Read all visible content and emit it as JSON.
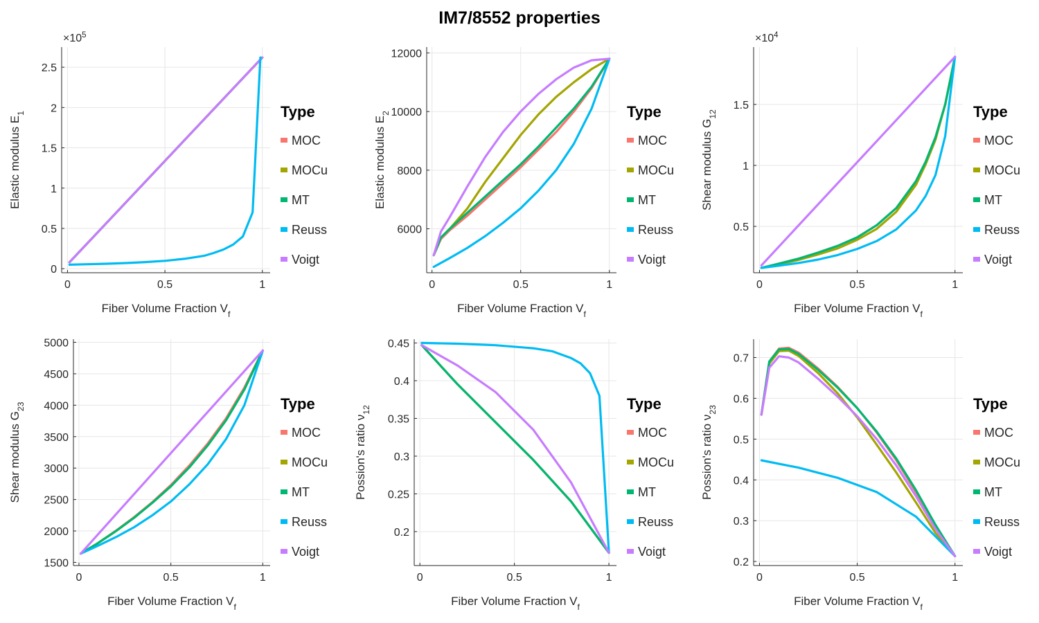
{
  "title": "IM7/8552 properties",
  "colors": {
    "MOC": "#F8766D",
    "MOCu": "#A3A500",
    "MT": "#00B772",
    "Reuss": "#00BBF2",
    "Voigt": "#C77CFF"
  },
  "chart_data": [
    {
      "type": "line",
      "xlabel": "Fiber Volume Fraction V_f",
      "ylabel": "Elastic modulus E_1",
      "exponent": "×10^5",
      "xlim": [
        -0.03,
        1.04
      ],
      "ylim": [
        -5000,
        275000
      ],
      "xticks": [
        0,
        0.5,
        1
      ],
      "xticklabels": [
        "0",
        "0.5",
        "1"
      ],
      "yticks": [
        0,
        50000,
        100000,
        150000,
        200000,
        250000
      ],
      "yticklabels": [
        "0",
        "0.5",
        "1",
        "1.5",
        "2",
        "2.5"
      ],
      "legend": {
        "title": "Type",
        "position": "right",
        "entries": [
          "MOC",
          "MOCu",
          "MT",
          "Reuss",
          "Voigt"
        ]
      },
      "grid": true,
      "series": [
        {
          "name": "MOC",
          "x": [
            0.01,
            1.0
          ],
          "y": [
            8000,
            262000
          ]
        },
        {
          "name": "MOCu",
          "x": [
            0.01,
            1.0
          ],
          "y": [
            8000,
            262000
          ]
        },
        {
          "name": "MT",
          "x": [
            0.01,
            1.0
          ],
          "y": [
            8000,
            262000
          ]
        },
        {
          "name": "Voigt",
          "x": [
            0.01,
            1.0
          ],
          "y": [
            8000,
            262000
          ]
        },
        {
          "name": "Reuss",
          "x": [
            0.01,
            0.1,
            0.2,
            0.3,
            0.4,
            0.5,
            0.6,
            0.7,
            0.75,
            0.8,
            0.85,
            0.9,
            0.95,
            0.99
          ],
          "y": [
            5000,
            5600,
            6200,
            7000,
            8200,
            9800,
            12300,
            16000,
            19500,
            23800,
            30000,
            40000,
            70000,
            262000
          ]
        }
      ]
    },
    {
      "type": "line",
      "xlabel": "Fiber Volume Fraction V_f",
      "ylabel": "Elastic modulus E_2",
      "exponent": "",
      "xlim": [
        -0.03,
        1.04
      ],
      "ylim": [
        4500,
        12200
      ],
      "xticks": [
        0,
        0.5,
        1
      ],
      "xticklabels": [
        "0",
        "0.5",
        "1"
      ],
      "yticks": [
        6000,
        8000,
        10000,
        12000
      ],
      "yticklabels": [
        "6000",
        "8000",
        "10000",
        "12000"
      ],
      "legend": {
        "title": "Type",
        "position": "right",
        "entries": [
          "MOC",
          "MOCu",
          "MT",
          "Reuss",
          "Voigt"
        ]
      },
      "grid": true,
      "series": [
        {
          "name": "MOC",
          "x": [
            0.01,
            0.05,
            0.1,
            0.2,
            0.3,
            0.4,
            0.5,
            0.6,
            0.7,
            0.8,
            0.9,
            1.0
          ],
          "y": [
            5100,
            5650,
            5950,
            6450,
            7000,
            7550,
            8100,
            8700,
            9300,
            10000,
            10800,
            11800
          ]
        },
        {
          "name": "MOCu",
          "x": [
            0.01,
            0.05,
            0.1,
            0.2,
            0.3,
            0.4,
            0.5,
            0.6,
            0.7,
            0.8,
            0.9,
            1.0
          ],
          "y": [
            5100,
            5700,
            6000,
            6700,
            7600,
            8400,
            9200,
            9900,
            10500,
            11000,
            11450,
            11800
          ]
        },
        {
          "name": "MT",
          "x": [
            0.01,
            0.05,
            0.1,
            0.2,
            0.3,
            0.4,
            0.5,
            0.6,
            0.7,
            0.8,
            0.9,
            1.0
          ],
          "y": [
            5100,
            5700,
            6000,
            6550,
            7100,
            7650,
            8200,
            8800,
            9450,
            10100,
            10850,
            11800
          ]
        },
        {
          "name": "Reuss",
          "x": [
            0.01,
            0.1,
            0.2,
            0.3,
            0.4,
            0.5,
            0.6,
            0.7,
            0.8,
            0.9,
            1.0
          ],
          "y": [
            4700,
            5000,
            5350,
            5750,
            6200,
            6700,
            7300,
            8000,
            8900,
            10100,
            11800
          ]
        },
        {
          "name": "Voigt",
          "x": [
            0.01,
            0.05,
            0.1,
            0.2,
            0.3,
            0.4,
            0.5,
            0.6,
            0.7,
            0.8,
            0.9,
            1.0
          ],
          "y": [
            5100,
            5900,
            6400,
            7450,
            8450,
            9300,
            10000,
            10600,
            11100,
            11500,
            11750,
            11800
          ]
        }
      ]
    },
    {
      "type": "line",
      "xlabel": "Fiber Volume Fraction V_f",
      "ylabel": "Shear modulus G_12",
      "exponent": "×10^4",
      "xlim": [
        -0.03,
        1.04
      ],
      "ylim": [
        1200,
        19700
      ],
      "xticks": [
        0,
        0.5,
        1
      ],
      "xticklabels": [
        "0",
        "0.5",
        "1"
      ],
      "yticks": [
        5000,
        10000,
        15000
      ],
      "yticklabels": [
        "0.5",
        "1",
        "1.5"
      ],
      "legend": {
        "title": "Type",
        "position": "right",
        "entries": [
          "MOC",
          "MOCu",
          "MT",
          "Reuss",
          "Voigt"
        ]
      },
      "grid": true,
      "series": [
        {
          "name": "MOC",
          "x": [
            0.01,
            0.1,
            0.2,
            0.3,
            0.4,
            0.5,
            0.6,
            0.7,
            0.8,
            0.85,
            0.9,
            0.95,
            1.0
          ],
          "y": [
            1600,
            1950,
            2350,
            2850,
            3400,
            4100,
            5100,
            6500,
            8700,
            10300,
            12300,
            15000,
            18900
          ]
        },
        {
          "name": "MOCu",
          "x": [
            0.01,
            0.1,
            0.2,
            0.3,
            0.4,
            0.5,
            0.6,
            0.7,
            0.8,
            0.85,
            0.9,
            0.95,
            1.0
          ],
          "y": [
            1600,
            1900,
            2250,
            2700,
            3200,
            3900,
            4800,
            6200,
            8400,
            10100,
            12100,
            15000,
            18900
          ]
        },
        {
          "name": "MT",
          "x": [
            0.01,
            0.1,
            0.2,
            0.3,
            0.4,
            0.5,
            0.6,
            0.7,
            0.8,
            0.85,
            0.9,
            0.95,
            1.0
          ],
          "y": [
            1600,
            1950,
            2350,
            2850,
            3400,
            4100,
            5100,
            6500,
            8700,
            10300,
            12300,
            15000,
            18900
          ]
        },
        {
          "name": "Reuss",
          "x": [
            0.01,
            0.1,
            0.2,
            0.3,
            0.4,
            0.5,
            0.6,
            0.7,
            0.8,
            0.85,
            0.9,
            0.95,
            1.0
          ],
          "y": [
            1600,
            1780,
            2000,
            2280,
            2650,
            3150,
            3800,
            4750,
            6300,
            7500,
            9200,
            12400,
            18900
          ]
        },
        {
          "name": "Voigt",
          "x": [
            0.01,
            1.0
          ],
          "y": [
            1800,
            18900
          ]
        }
      ]
    },
    {
      "type": "line",
      "xlabel": "Fiber Volume Fraction V_f",
      "ylabel": "Shear modulus G_23",
      "exponent": "",
      "xlim": [
        -0.03,
        1.04
      ],
      "ylim": [
        1450,
        5050
      ],
      "xticks": [
        0,
        0.5,
        1
      ],
      "xticklabels": [
        "0",
        "0.5",
        "1"
      ],
      "yticks": [
        1500,
        2000,
        2500,
        3000,
        3500,
        4000,
        4500,
        5000
      ],
      "yticklabels": [
        "1500",
        "2000",
        "2500",
        "3000",
        "3500",
        "4000",
        "4500",
        "5000"
      ],
      "legend": {
        "title": "Type",
        "position": "right",
        "entries": [
          "MOC",
          "MOCu",
          "MT",
          "Reuss",
          "Voigt"
        ]
      },
      "grid": true,
      "series": [
        {
          "name": "MOC",
          "x": [
            0.01,
            0.1,
            0.2,
            0.3,
            0.4,
            0.5,
            0.6,
            0.7,
            0.8,
            0.9,
            1.0
          ],
          "y": [
            1640,
            1800,
            2000,
            2220,
            2460,
            2730,
            3040,
            3390,
            3790,
            4280,
            4870
          ]
        },
        {
          "name": "MOCu",
          "x": [
            0.01,
            0.1,
            0.2,
            0.3,
            0.4,
            0.5,
            0.6,
            0.7,
            0.8,
            0.9,
            1.0
          ],
          "y": [
            1640,
            1800,
            1995,
            2210,
            2450,
            2710,
            3010,
            3360,
            3760,
            4250,
            4870
          ]
        },
        {
          "name": "MT",
          "x": [
            0.01,
            0.1,
            0.2,
            0.3,
            0.4,
            0.5,
            0.6,
            0.7,
            0.8,
            0.9,
            1.0
          ],
          "y": [
            1640,
            1800,
            1995,
            2210,
            2450,
            2710,
            3010,
            3360,
            3760,
            4250,
            4870
          ]
        },
        {
          "name": "Reuss",
          "x": [
            0.01,
            0.1,
            0.2,
            0.3,
            0.4,
            0.5,
            0.6,
            0.7,
            0.8,
            0.9,
            1.0
          ],
          "y": [
            1640,
            1760,
            1900,
            2060,
            2250,
            2470,
            2740,
            3060,
            3460,
            4000,
            4870
          ]
        },
        {
          "name": "Voigt",
          "x": [
            0.01,
            1.0
          ],
          "y": [
            1640,
            4870
          ]
        }
      ]
    },
    {
      "type": "line",
      "xlabel": "Fiber Volume Fraction V_f",
      "ylabel": "Possion's ratio ν_12",
      "exponent": "",
      "xlim": [
        -0.03,
        1.04
      ],
      "ylim": [
        0.155,
        0.455
      ],
      "xticks": [
        0,
        0.5,
        1
      ],
      "xticklabels": [
        "0",
        "0.5",
        "1"
      ],
      "yticks": [
        0.2,
        0.25,
        0.3,
        0.35,
        0.4,
        0.45
      ],
      "yticklabels": [
        "0.2",
        "0.25",
        "0.3",
        "0.35",
        "0.4",
        "0.45"
      ],
      "legend": {
        "title": "Type",
        "position": "right",
        "entries": [
          "MOC",
          "MOCu",
          "MT",
          "Reuss",
          "Voigt"
        ]
      },
      "grid": true,
      "series": [
        {
          "name": "MOC",
          "x": [
            0.01,
            0.2,
            0.4,
            0.6,
            0.8,
            1.0
          ],
          "y": [
            0.447,
            0.395,
            0.345,
            0.295,
            0.24,
            0.172
          ]
        },
        {
          "name": "MOCu",
          "x": [
            0.01,
            0.2,
            0.4,
            0.6,
            0.8,
            1.0
          ],
          "y": [
            0.447,
            0.395,
            0.345,
            0.295,
            0.24,
            0.172
          ]
        },
        {
          "name": "MT",
          "x": [
            0.01,
            0.2,
            0.4,
            0.6,
            0.8,
            1.0
          ],
          "y": [
            0.447,
            0.395,
            0.345,
            0.295,
            0.24,
            0.172
          ]
        },
        {
          "name": "Reuss",
          "x": [
            0.01,
            0.2,
            0.4,
            0.6,
            0.7,
            0.8,
            0.85,
            0.9,
            0.95,
            1.0
          ],
          "y": [
            0.45,
            0.449,
            0.447,
            0.443,
            0.439,
            0.43,
            0.423,
            0.41,
            0.38,
            0.172
          ]
        },
        {
          "name": "Voigt",
          "x": [
            0.01,
            0.2,
            0.4,
            0.6,
            0.8,
            1.0
          ],
          "y": [
            0.447,
            0.42,
            0.385,
            0.335,
            0.265,
            0.172
          ]
        }
      ]
    },
    {
      "type": "line",
      "xlabel": "Fiber Volume Fraction V_f",
      "ylabel": "Possion's ratio ν_23",
      "exponent": "",
      "xlim": [
        -0.03,
        1.04
      ],
      "ylim": [
        0.19,
        0.745
      ],
      "xticks": [
        0,
        0.5,
        1
      ],
      "xticklabels": [
        "0",
        "0.5",
        "1"
      ],
      "yticks": [
        0.2,
        0.3,
        0.4,
        0.5,
        0.6,
        0.7
      ],
      "yticklabels": [
        "0.2",
        "0.3",
        "0.4",
        "0.5",
        "0.6",
        "0.7"
      ],
      "legend": {
        "title": "Type",
        "position": "right",
        "entries": [
          "MOC",
          "MOCu",
          "MT",
          "Reuss",
          "Voigt"
        ]
      },
      "grid": true,
      "series": [
        {
          "name": "MOC",
          "x": [
            0.01,
            0.05,
            0.1,
            0.15,
            0.2,
            0.3,
            0.4,
            0.5,
            0.6,
            0.7,
            0.8,
            0.9,
            1.0
          ],
          "y": [
            0.56,
            0.69,
            0.722,
            0.724,
            0.712,
            0.673,
            0.628,
            0.576,
            0.516,
            0.448,
            0.37,
            0.285,
            0.213
          ]
        },
        {
          "name": "MOCu",
          "x": [
            0.01,
            0.05,
            0.1,
            0.15,
            0.2,
            0.3,
            0.4,
            0.5,
            0.6,
            0.7,
            0.8,
            0.9,
            1.0
          ],
          "y": [
            0.56,
            0.685,
            0.716,
            0.717,
            0.704,
            0.662,
            0.612,
            0.553,
            0.486,
            0.418,
            0.345,
            0.27,
            0.213
          ]
        },
        {
          "name": "MT",
          "x": [
            0.01,
            0.05,
            0.1,
            0.15,
            0.2,
            0.3,
            0.4,
            0.5,
            0.6,
            0.7,
            0.8,
            0.9,
            1.0
          ],
          "y": [
            0.56,
            0.69,
            0.72,
            0.721,
            0.709,
            0.67,
            0.626,
            0.576,
            0.518,
            0.452,
            0.375,
            0.29,
            0.213
          ]
        },
        {
          "name": "Reuss",
          "x": [
            0.01,
            0.2,
            0.4,
            0.6,
            0.8,
            1.0
          ],
          "y": [
            0.448,
            0.43,
            0.405,
            0.37,
            0.31,
            0.213
          ]
        },
        {
          "name": "Voigt",
          "x": [
            0.01,
            0.05,
            0.1,
            0.15,
            0.2,
            0.3,
            0.4,
            0.5,
            0.6,
            0.7,
            0.8,
            0.9,
            1.0
          ],
          "y": [
            0.56,
            0.675,
            0.703,
            0.7,
            0.688,
            0.648,
            0.604,
            0.556,
            0.5,
            0.435,
            0.36,
            0.28,
            0.213
          ]
        }
      ]
    }
  ]
}
